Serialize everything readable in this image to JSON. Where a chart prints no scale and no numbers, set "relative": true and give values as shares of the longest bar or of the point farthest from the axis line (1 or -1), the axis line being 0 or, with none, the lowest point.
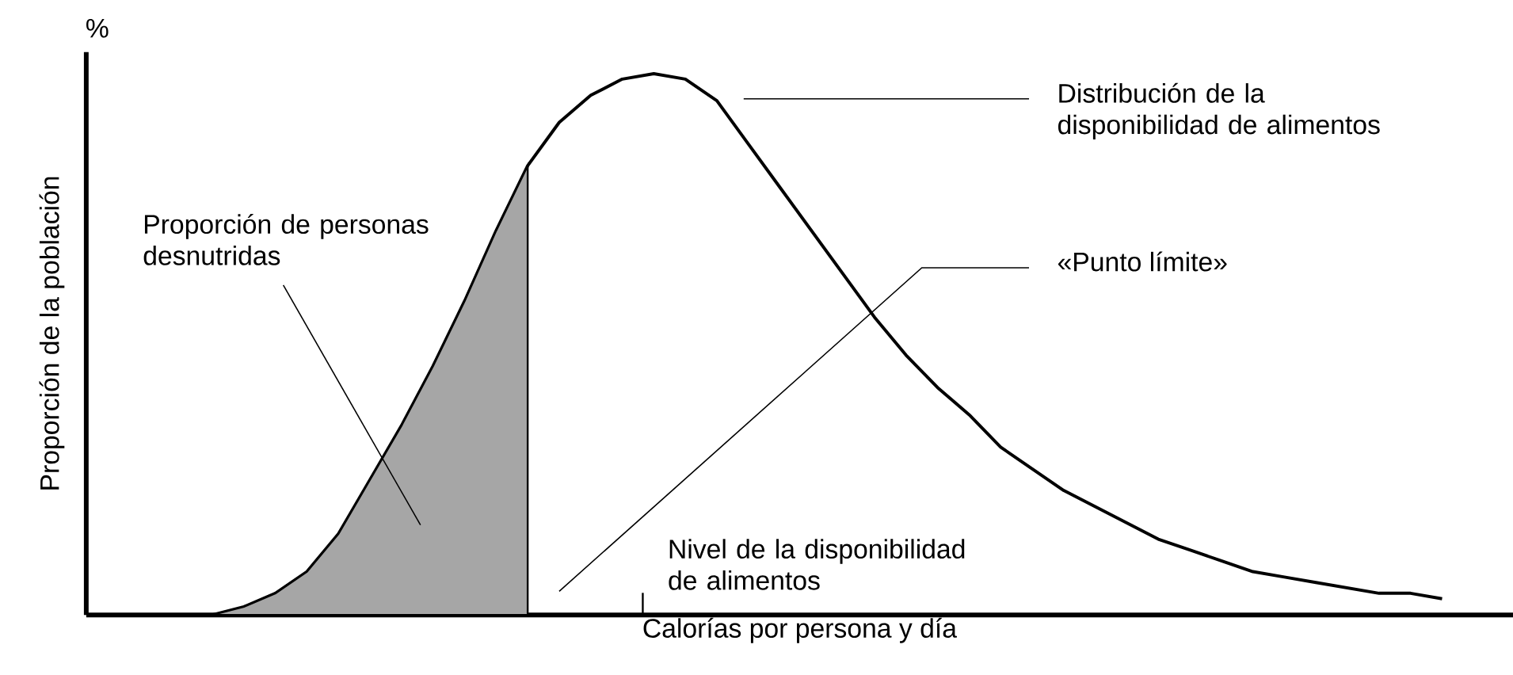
{
  "chart_data": {
    "type": "line",
    "relative": true,
    "ylabel": "Proporción de la población",
    "xlabel": "Calorías por persona y día",
    "marker": "none",
    "categories": [
      null,
      null,
      null,
      null,
      null,
      null,
      null,
      null,
      null,
      null,
      null,
      null,
      null,
      null,
      null,
      null,
      null,
      null,
      null,
      null,
      null,
      null,
      null,
      null,
      null,
      null,
      null,
      null,
      null,
      null,
      null,
      null,
      null,
      null,
      null,
      null,
      null,
      null,
      null,
      null
    ],
    "series": [
      {
        "color": "#000000",
        "values": [
          0,
          0.015,
          0.04,
          0.08,
          0.15,
          0.25,
          0.35,
          0.46,
          0.58,
          0.71,
          0.83,
          0.91,
          0.96,
          0.99,
          1,
          0.99,
          0.95,
          0.87,
          0.79,
          0.71,
          0.63,
          0.55,
          0.48,
          0.42,
          0.37,
          0.31,
          0.27,
          0.23,
          0.2,
          0.17,
          0.14,
          0.12,
          0.1,
          0.08,
          0.07,
          0.06,
          0.05,
          0.04,
          0.04,
          0.03
        ]
      },
      {
        "type": "area",
        "color": "#000000",
        "values": [
          0,
          0.015,
          0.04,
          0.08,
          0.15,
          0.25,
          0.35,
          0.46,
          0.58,
          0.71,
          0.83,
          null,
          null,
          null,
          null,
          null,
          null,
          null,
          null,
          null,
          null,
          null,
          null,
          null,
          null,
          null,
          null,
          null,
          null,
          null,
          null,
          null,
          null,
          null,
          null,
          null,
          null,
          null,
          null,
          null
        ]
      }
    ],
    "annotations": [
      "%",
      "Distribución de la disponibilidad de alimentos",
      "«Punto límite»",
      "Proporción de personas desnutridas",
      "Nivel de la disponibilidad de alimentos"
    ]
  }
}
